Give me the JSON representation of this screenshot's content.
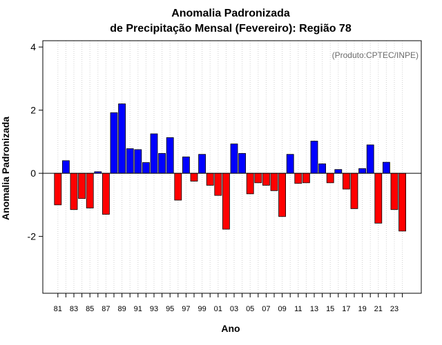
{
  "chart_data": {
    "type": "bar",
    "title": "Anomalia Padronizada",
    "subtitle": "de Precipitação Mensal (Fevereiro): Região 78",
    "xlabel": "Ano",
    "ylabel": "Anomalia Padronizada",
    "annotation": "(Produto:CPTEC/INPE)",
    "ylim": [
      -3.8,
      4.2
    ],
    "yticks": [
      -2,
      0,
      2,
      4
    ],
    "yticks_labels": [
      "-2",
      "0",
      "2",
      "4"
    ],
    "grid": "vertical dotted",
    "positive_color": "#0000ff",
    "negative_color": "#ff0000",
    "xtick_labels": [
      "81",
      "83",
      "85",
      "87",
      "89",
      "91",
      "93",
      "95",
      "97",
      "99",
      "01",
      "03",
      "05",
      "07",
      "09",
      "11",
      "13",
      "15",
      "17",
      "19",
      "21",
      "23"
    ],
    "categories": [
      "1981",
      "1982",
      "1983",
      "1984",
      "1985",
      "1986",
      "1987",
      "1988",
      "1989",
      "1990",
      "1991",
      "1992",
      "1993",
      "1994",
      "1995",
      "1996",
      "1997",
      "1998",
      "1999",
      "2000",
      "2001",
      "2002",
      "2003",
      "2004",
      "2005",
      "2006",
      "2007",
      "2008",
      "2009",
      "2010",
      "2011",
      "2012",
      "2013",
      "2014",
      "2015",
      "2016",
      "2017",
      "2018",
      "2019",
      "2020",
      "2021",
      "2022",
      "2023",
      "2024"
    ],
    "values": [
      -1.0,
      0.4,
      -1.15,
      -0.8,
      -1.1,
      0.05,
      -1.3,
      1.92,
      2.2,
      0.78,
      0.75,
      0.34,
      1.25,
      0.63,
      1.13,
      -0.85,
      0.52,
      -0.25,
      0.6,
      -0.38,
      -0.7,
      -1.77,
      0.93,
      0.63,
      -0.65,
      -0.3,
      -0.38,
      -0.55,
      -1.37,
      0.6,
      -0.32,
      -0.3,
      1.02,
      0.3,
      -0.3,
      0.12,
      -0.5,
      -1.12,
      0.15,
      0.9,
      -1.58,
      0.35,
      -1.15,
      -1.83
    ]
  }
}
